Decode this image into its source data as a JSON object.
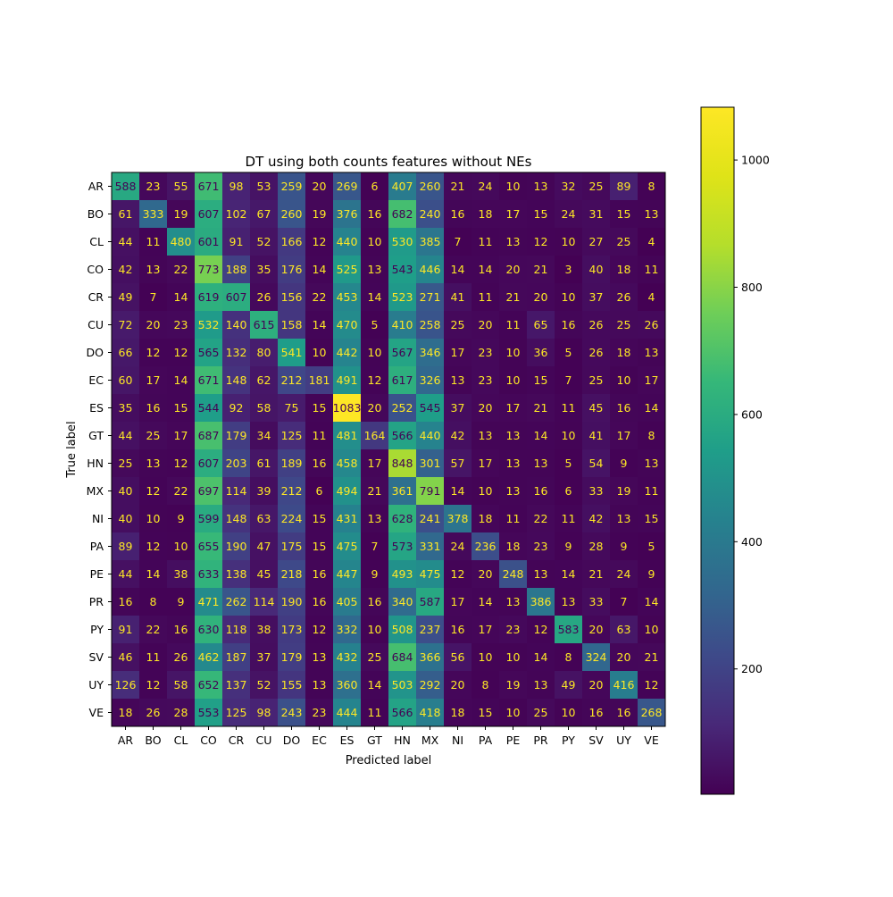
{
  "chart_data": {
    "type": "heatmap",
    "title": "DT using both counts features without NEs",
    "xlabel": "Predicted label",
    "ylabel": "True label",
    "x_categories": [
      "AR",
      "BO",
      "CL",
      "CO",
      "CR",
      "CU",
      "DO",
      "EC",
      "ES",
      "GT",
      "HN",
      "MX",
      "NI",
      "PA",
      "PE",
      "PR",
      "PY",
      "SV",
      "UY",
      "VE"
    ],
    "y_categories": [
      "AR",
      "BO",
      "CL",
      "CO",
      "CR",
      "CU",
      "DO",
      "EC",
      "ES",
      "GT",
      "HN",
      "MX",
      "NI",
      "PA",
      "PE",
      "PR",
      "PY",
      "SV",
      "UY",
      "VE"
    ],
    "values": [
      [
        588,
        23,
        55,
        671,
        98,
        53,
        259,
        20,
        269,
        6,
        407,
        260,
        21,
        24,
        10,
        13,
        32,
        25,
        89,
        8
      ],
      [
        61,
        333,
        19,
        607,
        102,
        67,
        260,
        19,
        376,
        16,
        682,
        240,
        16,
        18,
        17,
        15,
        24,
        31,
        15,
        13
      ],
      [
        44,
        11,
        480,
        601,
        91,
        52,
        166,
        12,
        440,
        10,
        530,
        385,
        7,
        11,
        13,
        12,
        10,
        27,
        25,
        4
      ],
      [
        42,
        13,
        22,
        773,
        188,
        35,
        176,
        14,
        525,
        13,
        543,
        446,
        14,
        14,
        20,
        21,
        3,
        40,
        18,
        11
      ],
      [
        49,
        7,
        14,
        619,
        607,
        26,
        156,
        22,
        453,
        14,
        523,
        271,
        41,
        11,
        21,
        20,
        10,
        37,
        26,
        4
      ],
      [
        72,
        20,
        23,
        532,
        140,
        615,
        158,
        14,
        470,
        5,
        410,
        258,
        25,
        20,
        11,
        65,
        16,
        26,
        25,
        26
      ],
      [
        66,
        12,
        12,
        565,
        132,
        80,
        541,
        10,
        442,
        10,
        567,
        346,
        17,
        23,
        10,
        36,
        5,
        26,
        18,
        13
      ],
      [
        60,
        17,
        14,
        671,
        148,
        62,
        212,
        181,
        491,
        12,
        617,
        326,
        13,
        23,
        10,
        15,
        7,
        25,
        10,
        17
      ],
      [
        35,
        16,
        15,
        544,
        92,
        58,
        75,
        15,
        1083,
        20,
        252,
        545,
        37,
        20,
        17,
        21,
        11,
        45,
        16,
        14
      ],
      [
        44,
        25,
        17,
        687,
        179,
        34,
        125,
        11,
        481,
        164,
        566,
        440,
        42,
        13,
        13,
        14,
        10,
        41,
        17,
        8
      ],
      [
        25,
        13,
        12,
        607,
        203,
        61,
        189,
        16,
        458,
        17,
        848,
        301,
        57,
        17,
        13,
        13,
        5,
        54,
        9,
        13
      ],
      [
        40,
        12,
        22,
        697,
        114,
        39,
        212,
        6,
        494,
        21,
        361,
        791,
        14,
        10,
        13,
        16,
        6,
        33,
        19,
        11
      ],
      [
        40,
        10,
        9,
        599,
        148,
        63,
        224,
        15,
        431,
        13,
        628,
        241,
        378,
        18,
        11,
        22,
        11,
        42,
        13,
        15
      ],
      [
        89,
        12,
        10,
        655,
        190,
        47,
        175,
        15,
        475,
        7,
        573,
        331,
        24,
        236,
        18,
        23,
        9,
        28,
        9,
        5
      ],
      [
        44,
        14,
        38,
        633,
        138,
        45,
        218,
        16,
        447,
        9,
        493,
        475,
        12,
        20,
        248,
        13,
        14,
        21,
        24,
        9
      ],
      [
        16,
        8,
        9,
        471,
        262,
        114,
        190,
        16,
        405,
        16,
        340,
        587,
        17,
        14,
        13,
        386,
        13,
        33,
        7,
        14
      ],
      [
        91,
        22,
        16,
        630,
        118,
        38,
        173,
        12,
        332,
        10,
        508,
        237,
        16,
        17,
        23,
        12,
        583,
        20,
        63,
        10
      ],
      [
        46,
        11,
        26,
        462,
        187,
        37,
        179,
        13,
        432,
        25,
        684,
        366,
        56,
        10,
        10,
        14,
        8,
        324,
        20,
        21
      ],
      [
        126,
        12,
        58,
        652,
        137,
        52,
        155,
        13,
        360,
        14,
        503,
        292,
        20,
        8,
        19,
        13,
        49,
        20,
        416,
        12
      ],
      [
        18,
        26,
        28,
        553,
        125,
        98,
        243,
        23,
        444,
        11,
        566,
        418,
        18,
        15,
        10,
        25,
        10,
        16,
        16,
        268
      ]
    ],
    "colormap": "viridis",
    "vmin": 3,
    "vmax": 1083,
    "colorbar_ticks": [
      200,
      400,
      600,
      800,
      1000
    ],
    "text_color_light": "#fde725",
    "text_color_dark": "#440154"
  }
}
